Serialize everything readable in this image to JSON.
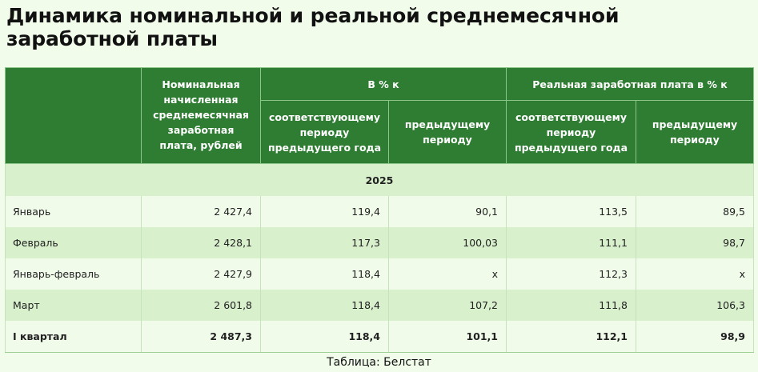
{
  "title": "Динамика номинальной и реальной среднемесячной заработной платы",
  "table": {
    "headers": {
      "nominal": "Номинальная начисленная среднемесячная заработная плата, рублей",
      "percent_group": "В % к",
      "real_group": "Реальная заработная плата в % к",
      "sub_same_period": "соответствующему периоду предыдущего года",
      "sub_prev_period": "предыдущему периоду"
    },
    "year": "2025",
    "rows": [
      {
        "label": "Январь",
        "nominal": "2 427,4",
        "pct_yoy": "119,4",
        "pct_prev": "90,1",
        "real_yoy": "113,5",
        "real_prev": "89,5"
      },
      {
        "label": "Февраль",
        "nominal": "2 428,1",
        "pct_yoy": "117,3",
        "pct_prev": "100,03",
        "real_yoy": "111,1",
        "real_prev": "98,7"
      },
      {
        "label": "Январь-февраль",
        "nominal": "2 427,9",
        "pct_yoy": "118,4",
        "pct_prev": "x",
        "real_yoy": "112,3",
        "real_prev": "x"
      },
      {
        "label": "Март",
        "nominal": "2 601,8",
        "pct_yoy": "118,4",
        "pct_prev": "107,2",
        "real_yoy": "111,8",
        "real_prev": "106,3"
      },
      {
        "label": "I квартал",
        "nominal": "2 487,3",
        "pct_yoy": "118,4",
        "pct_prev": "101,1",
        "real_yoy": "112,1",
        "real_prev": "98,9"
      }
    ]
  },
  "source": "Таблица: Белстат"
}
